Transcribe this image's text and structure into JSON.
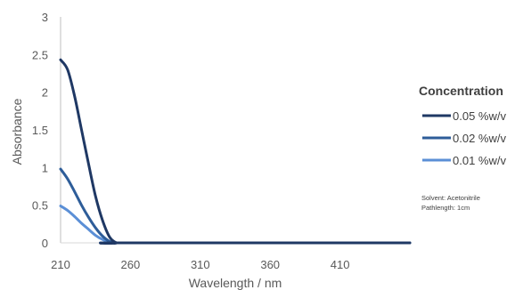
{
  "chart_data": {
    "type": "line",
    "xlabel": "Wavelength / nm",
    "ylabel": "Absorbance",
    "xlim": [
      210,
      460
    ],
    "ylim": [
      0,
      3
    ],
    "xticks": [
      210,
      260,
      310,
      360,
      410
    ],
    "yticks": [
      "0",
      "0.5",
      "1",
      "1.5",
      "2",
      "2.5",
      "3"
    ],
    "grid": false,
    "legend": {
      "title": "Concentration",
      "placement": "right"
    },
    "series": [
      {
        "name": "0.05 %w/v",
        "color": "#1f3864",
        "x": [
          210,
          215,
          220,
          225,
          230,
          235,
          240,
          245,
          250,
          255,
          460
        ],
        "y": [
          2.43,
          2.3,
          1.95,
          1.5,
          1.05,
          0.62,
          0.3,
          0.08,
          0.0,
          0.0,
          0.0
        ]
      },
      {
        "name": "0.02 %w/v",
        "color": "#2e5d99",
        "x": [
          210,
          215,
          220,
          225,
          230,
          235,
          240,
          245,
          250,
          255,
          460
        ],
        "y": [
          0.98,
          0.85,
          0.68,
          0.5,
          0.34,
          0.2,
          0.09,
          0.02,
          0.0,
          0.0,
          0.0
        ]
      },
      {
        "name": "0.01 %w/v",
        "color": "#5b8fd6",
        "x": [
          210,
          215,
          220,
          225,
          230,
          235,
          240,
          245,
          250,
          255,
          460
        ],
        "y": [
          0.49,
          0.43,
          0.35,
          0.26,
          0.18,
          0.1,
          0.045,
          0.01,
          0.0,
          0.0,
          0.0
        ]
      }
    ],
    "annotations": [
      "Solvent: Acetonitrile",
      "Pathlength: 1cm"
    ]
  }
}
